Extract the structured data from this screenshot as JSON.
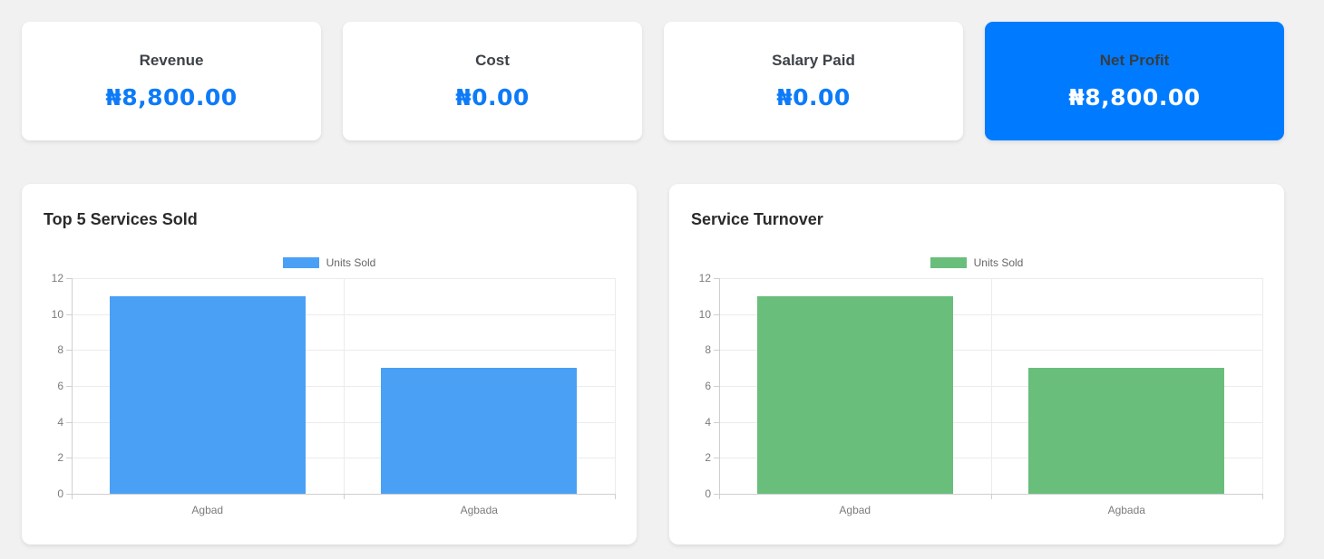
{
  "colors": {
    "page_background": "#f1f1f2",
    "primary": "#007bff",
    "stat_value_blue": "#0d7bf8",
    "blue_bar": "#4aa0f4",
    "green_bar": "#69be7b"
  },
  "summary_cards": [
    {
      "label": "Revenue",
      "value": "₦8,800.00",
      "variant": "light"
    },
    {
      "label": "Cost",
      "value": "₦0.00",
      "variant": "light"
    },
    {
      "label": "Salary Paid",
      "value": "₦0.00",
      "variant": "light"
    },
    {
      "label": "Net Profit",
      "value": "₦8,800.00",
      "variant": "primary"
    }
  ],
  "chart_data": [
    {
      "type": "bar",
      "title": "Top 5 Services Sold",
      "categories": [
        "Agbad",
        "Agbada"
      ],
      "series": [
        {
          "name": "Units Sold",
          "values": [
            11,
            7
          ]
        }
      ],
      "ylim": [
        0,
        12
      ],
      "yticks": [
        0,
        2,
        4,
        6,
        8,
        10,
        12
      ],
      "bar_color": "#4aa0f4",
      "legend_position": "top",
      "grid": true,
      "xlabel": "",
      "ylabel": ""
    },
    {
      "type": "bar",
      "title": "Service Turnover",
      "categories": [
        "Agbad",
        "Agbada"
      ],
      "series": [
        {
          "name": "Units Sold",
          "values": [
            11,
            7
          ]
        }
      ],
      "ylim": [
        0,
        12
      ],
      "yticks": [
        0,
        2,
        4,
        6,
        8,
        10,
        12
      ],
      "bar_color": "#69be7b",
      "legend_position": "top",
      "grid": true,
      "xlabel": "",
      "ylabel": ""
    }
  ]
}
